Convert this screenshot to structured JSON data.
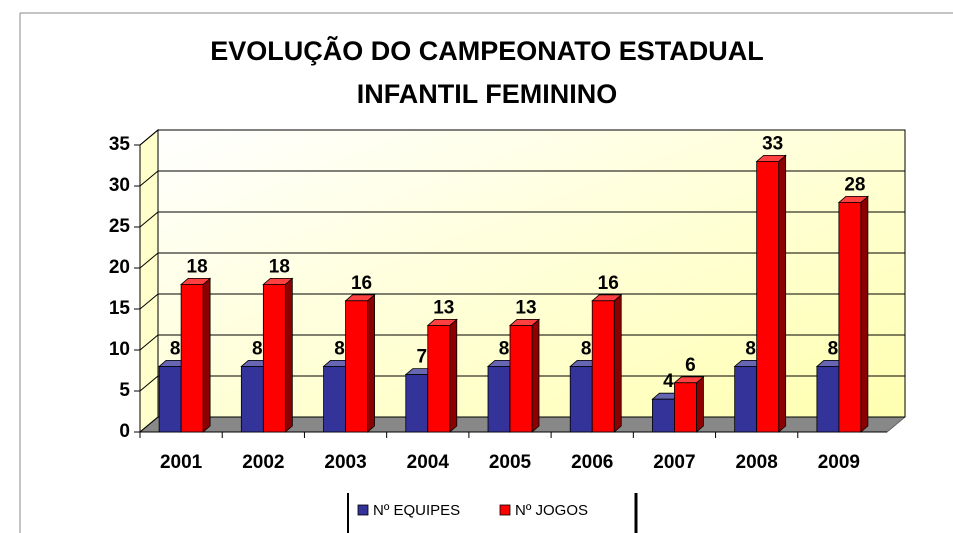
{
  "chart_data": {
    "type": "bar",
    "title": [
      "EVOLUÇÃO DO CAMPEONATO ESTADUAL",
      "INFANTIL FEMININO"
    ],
    "categories": [
      "2001",
      "2002",
      "2003",
      "2004",
      "2005",
      "2006",
      "2007",
      "2008",
      "2009"
    ],
    "series": [
      {
        "name": "Nº EQUIPES",
        "color": "#333399",
        "values": [
          8,
          8,
          8,
          7,
          8,
          8,
          4,
          8,
          8
        ]
      },
      {
        "name": "Nº JOGOS",
        "color": "#ff0000",
        "values": [
          18,
          18,
          16,
          13,
          13,
          16,
          6,
          33,
          28
        ]
      }
    ],
    "ylim": [
      0,
      35
    ],
    "yticks": [
      0,
      5,
      10,
      15,
      20,
      25,
      30,
      35
    ],
    "grid": true,
    "legend": "bottom"
  }
}
